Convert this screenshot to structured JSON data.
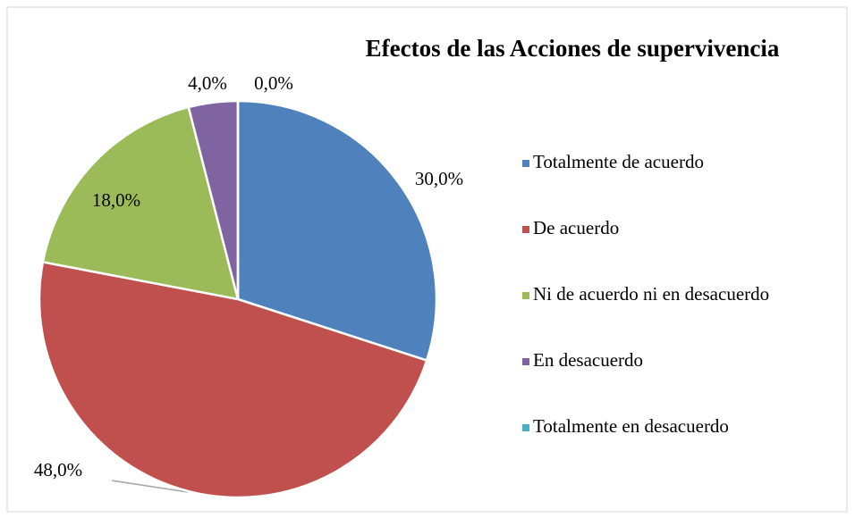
{
  "chart_data": {
    "type": "pie",
    "title": "Efectos de las Acciones de supervivencia",
    "categories": [
      "Totalmente de acuerdo",
      "De acuerdo",
      "Ni de acuerdo ni en desacuerdo",
      "En desacuerdo",
      "Totalmente en desacuerdo"
    ],
    "values": [
      30,
      48,
      18,
      4,
      0
    ],
    "value_labels": [
      "30,0%",
      "48,0%",
      "18,0%",
      "4,0%",
      "0,0%"
    ],
    "colors": [
      "#4f81bd",
      "#c0504d",
      "#9bbb59",
      "#8064a2",
      "#4bacc6"
    ],
    "legend": "right"
  }
}
